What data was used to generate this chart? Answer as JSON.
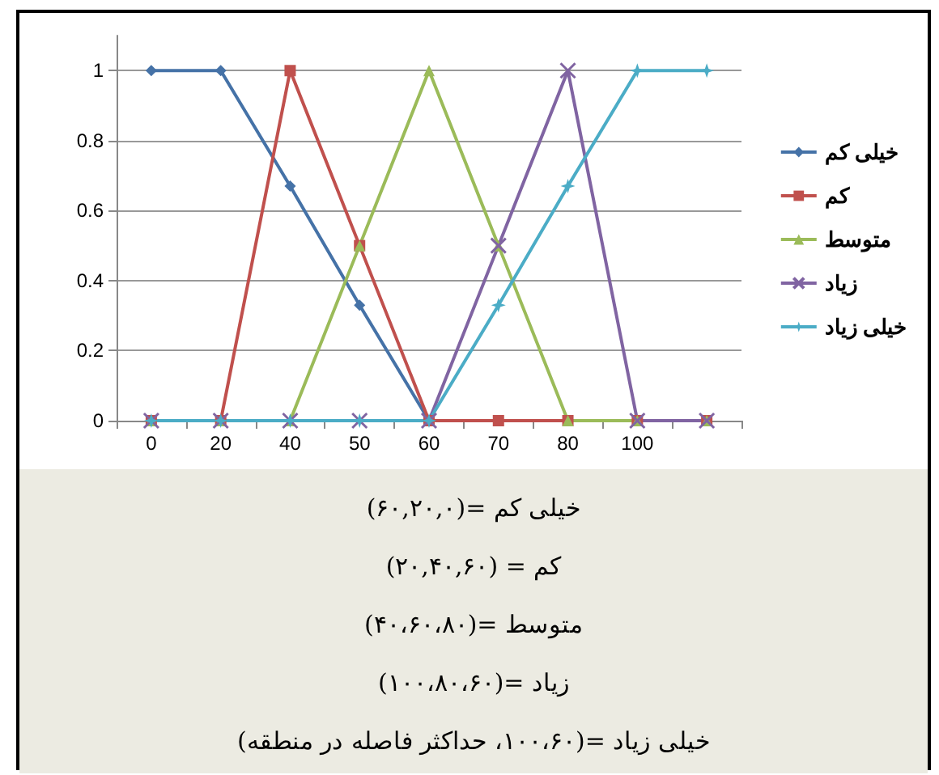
{
  "chart_data": {
    "type": "line",
    "categories": [
      "0",
      "20",
      "40",
      "50",
      "60",
      "70",
      "80",
      "100",
      null
    ],
    "series": [
      {
        "name": "خیلی کم",
        "color": "#4572a7",
        "marker": "diamond",
        "values": [
          1,
          1,
          0.67,
          0.33,
          0,
          null,
          null,
          null,
          null
        ]
      },
      {
        "name": "کم",
        "color": "#c0504d",
        "marker": "square",
        "values": [
          0,
          0,
          1,
          0.5,
          0,
          0,
          0,
          0,
          0
        ]
      },
      {
        "name": "متوسط",
        "color": "#9bbb59",
        "marker": "triangle",
        "values": [
          0,
          0,
          0,
          0.5,
          1,
          0.5,
          0,
          0,
          0
        ]
      },
      {
        "name": "زیاد",
        "color": "#8064a2",
        "marker": "cross",
        "values": [
          0,
          0,
          0,
          0,
          0,
          0.5,
          1,
          0,
          0
        ]
      },
      {
        "name": "خیلی زیاد",
        "color": "#4bacc6",
        "marker": "star",
        "values": [
          0,
          0,
          0,
          0,
          0,
          0.33,
          0.67,
          1,
          1
        ]
      }
    ],
    "ylim": [
      0,
      1.1
    ],
    "yticks": [
      0,
      0.2,
      0.4,
      0.6,
      0.8,
      1
    ],
    "grid": "y",
    "legend": "right",
    "line_style": "solid",
    "annotations": [
      "خیلی کم =(۶۰,۲۰,۰)",
      "کم = (۲۰,۴۰,۶۰)",
      "متوسط =(۴۰،۶۰،۸۰)",
      "زیاد =(۱۰۰،۸۰،۶۰)",
      "خیلی زیاد =(۱۰۰،۶۰، حداکثر فاصله در منطقه)"
    ]
  }
}
